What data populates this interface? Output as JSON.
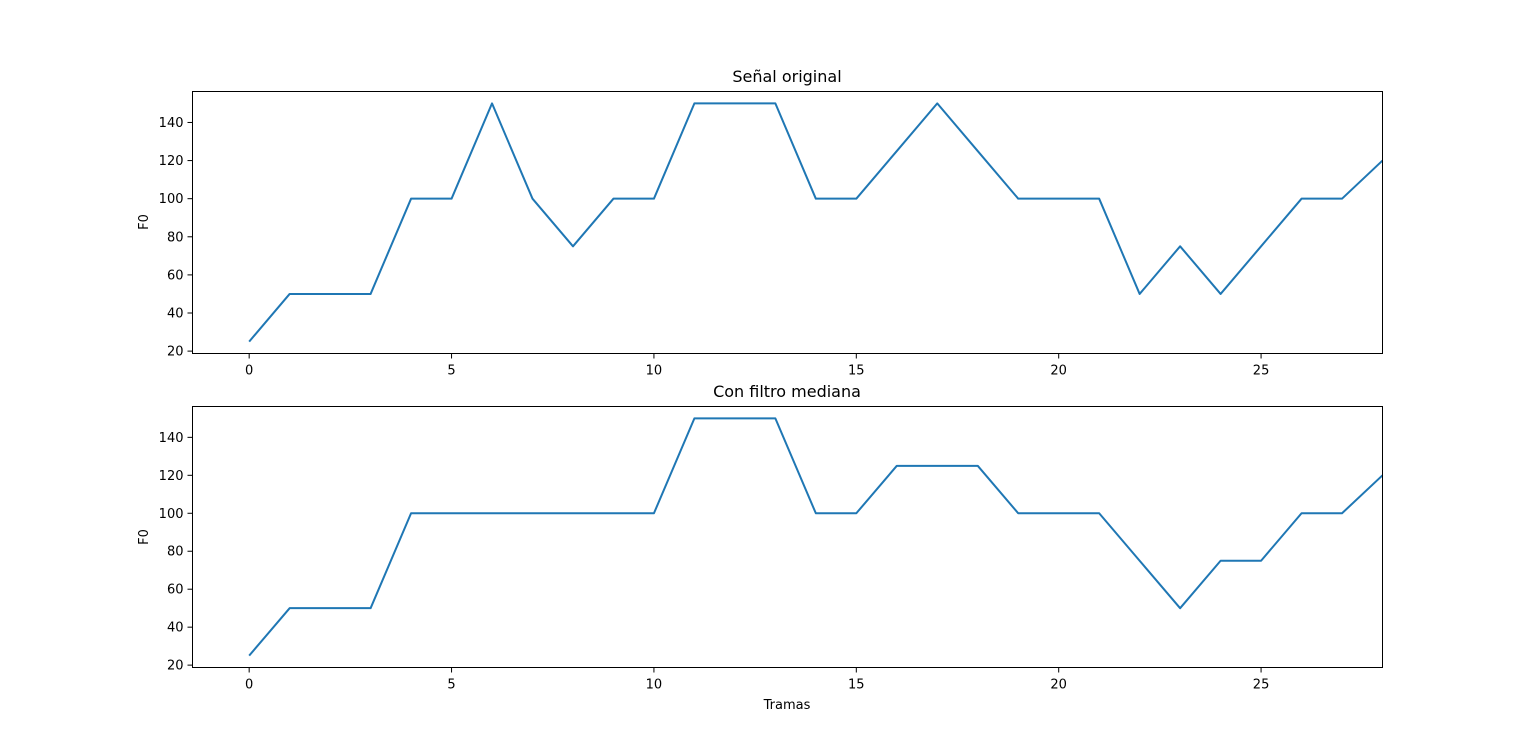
{
  "chart_data": [
    {
      "type": "line",
      "title": "Señal original",
      "xlabel": "",
      "ylabel": "F0",
      "xlim": [
        -1.4,
        28
      ],
      "ylim": [
        18.75,
        156.25
      ],
      "xticks": [
        0,
        5,
        10,
        15,
        20,
        25
      ],
      "yticks": [
        20,
        40,
        60,
        80,
        100,
        120,
        140
      ],
      "grid": false,
      "x": [
        0,
        1,
        2,
        3,
        4,
        5,
        6,
        7,
        8,
        9,
        10,
        11,
        12,
        13,
        14,
        15,
        16,
        17,
        18,
        19,
        20,
        21,
        22,
        23,
        24,
        25,
        26,
        27,
        28
      ],
      "series": [
        {
          "color": "#1f77b4",
          "values": [
            25,
            50,
            50,
            50,
            100,
            100,
            150,
            100,
            75,
            100,
            100,
            150,
            150,
            150,
            100,
            100,
            125,
            150,
            125,
            100,
            100,
            100,
            50,
            75,
            50,
            75,
            100,
            100,
            120
          ]
        }
      ]
    },
    {
      "type": "line",
      "title": "Con filtro mediana",
      "xlabel": "Tramas",
      "ylabel": "F0",
      "xlim": [
        -1.4,
        28
      ],
      "ylim": [
        18.75,
        156.25
      ],
      "xticks": [
        0,
        5,
        10,
        15,
        20,
        25
      ],
      "yticks": [
        20,
        40,
        60,
        80,
        100,
        120,
        140
      ],
      "grid": false,
      "x": [
        0,
        1,
        2,
        3,
        4,
        5,
        6,
        7,
        8,
        9,
        10,
        11,
        12,
        13,
        14,
        15,
        16,
        17,
        18,
        19,
        20,
        21,
        22,
        23,
        24,
        25,
        26,
        27,
        28
      ],
      "series": [
        {
          "color": "#1f77b4",
          "values": [
            25,
            50,
            50,
            50,
            100,
            100,
            100,
            100,
            100,
            100,
            100,
            150,
            150,
            150,
            100,
            100,
            125,
            125,
            125,
            100,
            100,
            100,
            75,
            50,
            75,
            75,
            100,
            100,
            120
          ]
        }
      ]
    }
  ]
}
